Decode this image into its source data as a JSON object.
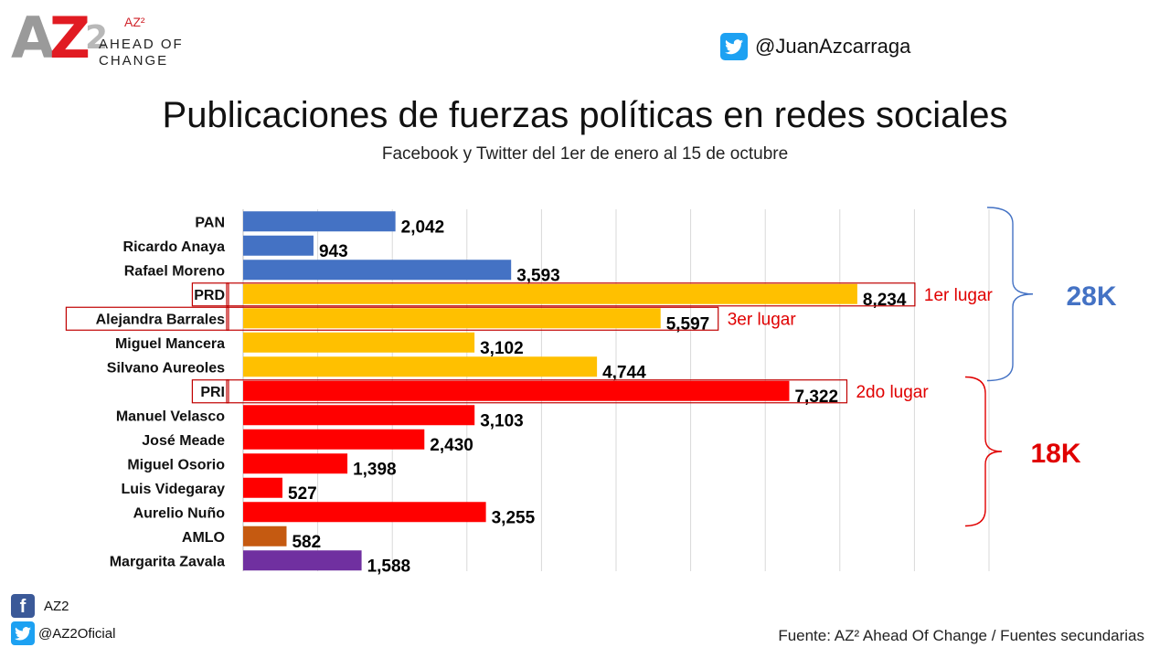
{
  "brand": {
    "mark_a": "A",
    "mark_z": "Z",
    "mark_2": "2",
    "small": "AZ²",
    "line1": "AHEAD OF",
    "line2": "CHANGE"
  },
  "header": {
    "twitter_handle": "@JuanAzcarraga"
  },
  "footer": {
    "facebook": "AZ2",
    "twitter": "@AZ2Oficial",
    "source": "Fuente: AZ² Ahead Of Change / Fuentes secundarias"
  },
  "chart_data": {
    "type": "bar",
    "orientation": "horizontal",
    "title": "Publicaciones de fuerzas políticas en redes sociales",
    "subtitle": "Facebook y Twitter del 1er de enero al 15 de octubre",
    "xlim": [
      0,
      10000
    ],
    "grid": true,
    "categories": [
      "PAN",
      "Ricardo Anaya",
      "Rafael Moreno",
      "PRD",
      "Alejandra Barrales",
      "Miguel Mancera",
      "Silvano Aureoles",
      "PRI",
      "Manuel Velasco",
      "José Meade",
      "Miguel Osorio",
      "Luis Videgaray",
      "Aurelio Nuño",
      "AMLO",
      "Margarita Zavala"
    ],
    "values": [
      2042,
      943,
      3593,
      8234,
      5597,
      3102,
      4744,
      7322,
      3103,
      2430,
      1398,
      527,
      3255,
      582,
      1588
    ],
    "value_labels": [
      "2,042",
      "943",
      "3,593",
      "8,234",
      "5,597",
      "3,102",
      "4,744",
      "7,322",
      "3,103",
      "2,430",
      "1,398",
      "527",
      "3,255",
      "582",
      "1,588"
    ],
    "colors": [
      "#4472c4",
      "#4472c4",
      "#4472c4",
      "#ffc000",
      "#ffc000",
      "#ffc000",
      "#ffc000",
      "#ff0000",
      "#ff0000",
      "#ff0000",
      "#ff0000",
      "#ff0000",
      "#ff0000",
      "#c55a11",
      "#7030a0"
    ],
    "annotations": [
      {
        "index": 3,
        "text": "1er lugar"
      },
      {
        "index": 7,
        "text": "2do lugar"
      },
      {
        "index": 4,
        "text": "3er lugar"
      }
    ],
    "groups": [
      {
        "from": 0,
        "to": 6,
        "label": "28K",
        "color": "#4472c4"
      },
      {
        "from": 7,
        "to": 12,
        "label": "18K",
        "color": "#e00000"
      }
    ],
    "highlight_color": "#c00000"
  }
}
